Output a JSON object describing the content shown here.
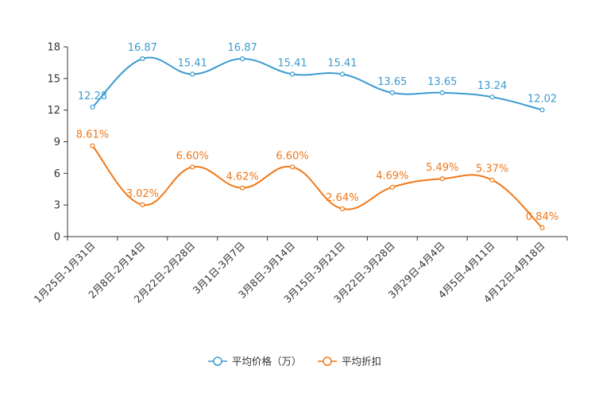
{
  "chart_data": {
    "type": "line",
    "title": "",
    "xlabel": "",
    "ylabel": "",
    "ylim": [
      0,
      18
    ],
    "yticks": [
      "0",
      "3",
      "6",
      "9",
      "12",
      "15",
      "18"
    ],
    "grid": false,
    "legend_position": "bottom-center",
    "categories": [
      "1月25日-1月31日",
      "2月8日-2月14日",
      "2月22日-2月28日",
      "3月1日-3月7日",
      "3月8日-3月14日",
      "3月15日-3月21日",
      "3月22日-3月28日",
      "3月29日-4月4日",
      "4月5日-4月11日",
      "4月12日-4月18日"
    ],
    "series": [
      {
        "name": "平均价格（万）",
        "color": "#3c9bd0",
        "values": [
          12.28,
          16.87,
          15.41,
          16.87,
          15.41,
          15.41,
          13.65,
          13.65,
          13.24,
          12.02
        ],
        "labels": [
          "12.28",
          "16.87",
          "15.41",
          "16.87",
          "15.41",
          "15.41",
          "13.65",
          "13.65",
          "13.24",
          "12.02"
        ]
      },
      {
        "name": "平均折扣",
        "color": "#f07818",
        "values": [
          8.61,
          3.02,
          6.6,
          4.62,
          6.6,
          2.64,
          4.69,
          5.49,
          5.37,
          0.84
        ],
        "labels": [
          "8.61%",
          "3.02%",
          "6.60%",
          "4.62%",
          "6.60%",
          "2.64%",
          "4.69%",
          "5.49%",
          "5.37%",
          "0.84%"
        ]
      }
    ]
  }
}
